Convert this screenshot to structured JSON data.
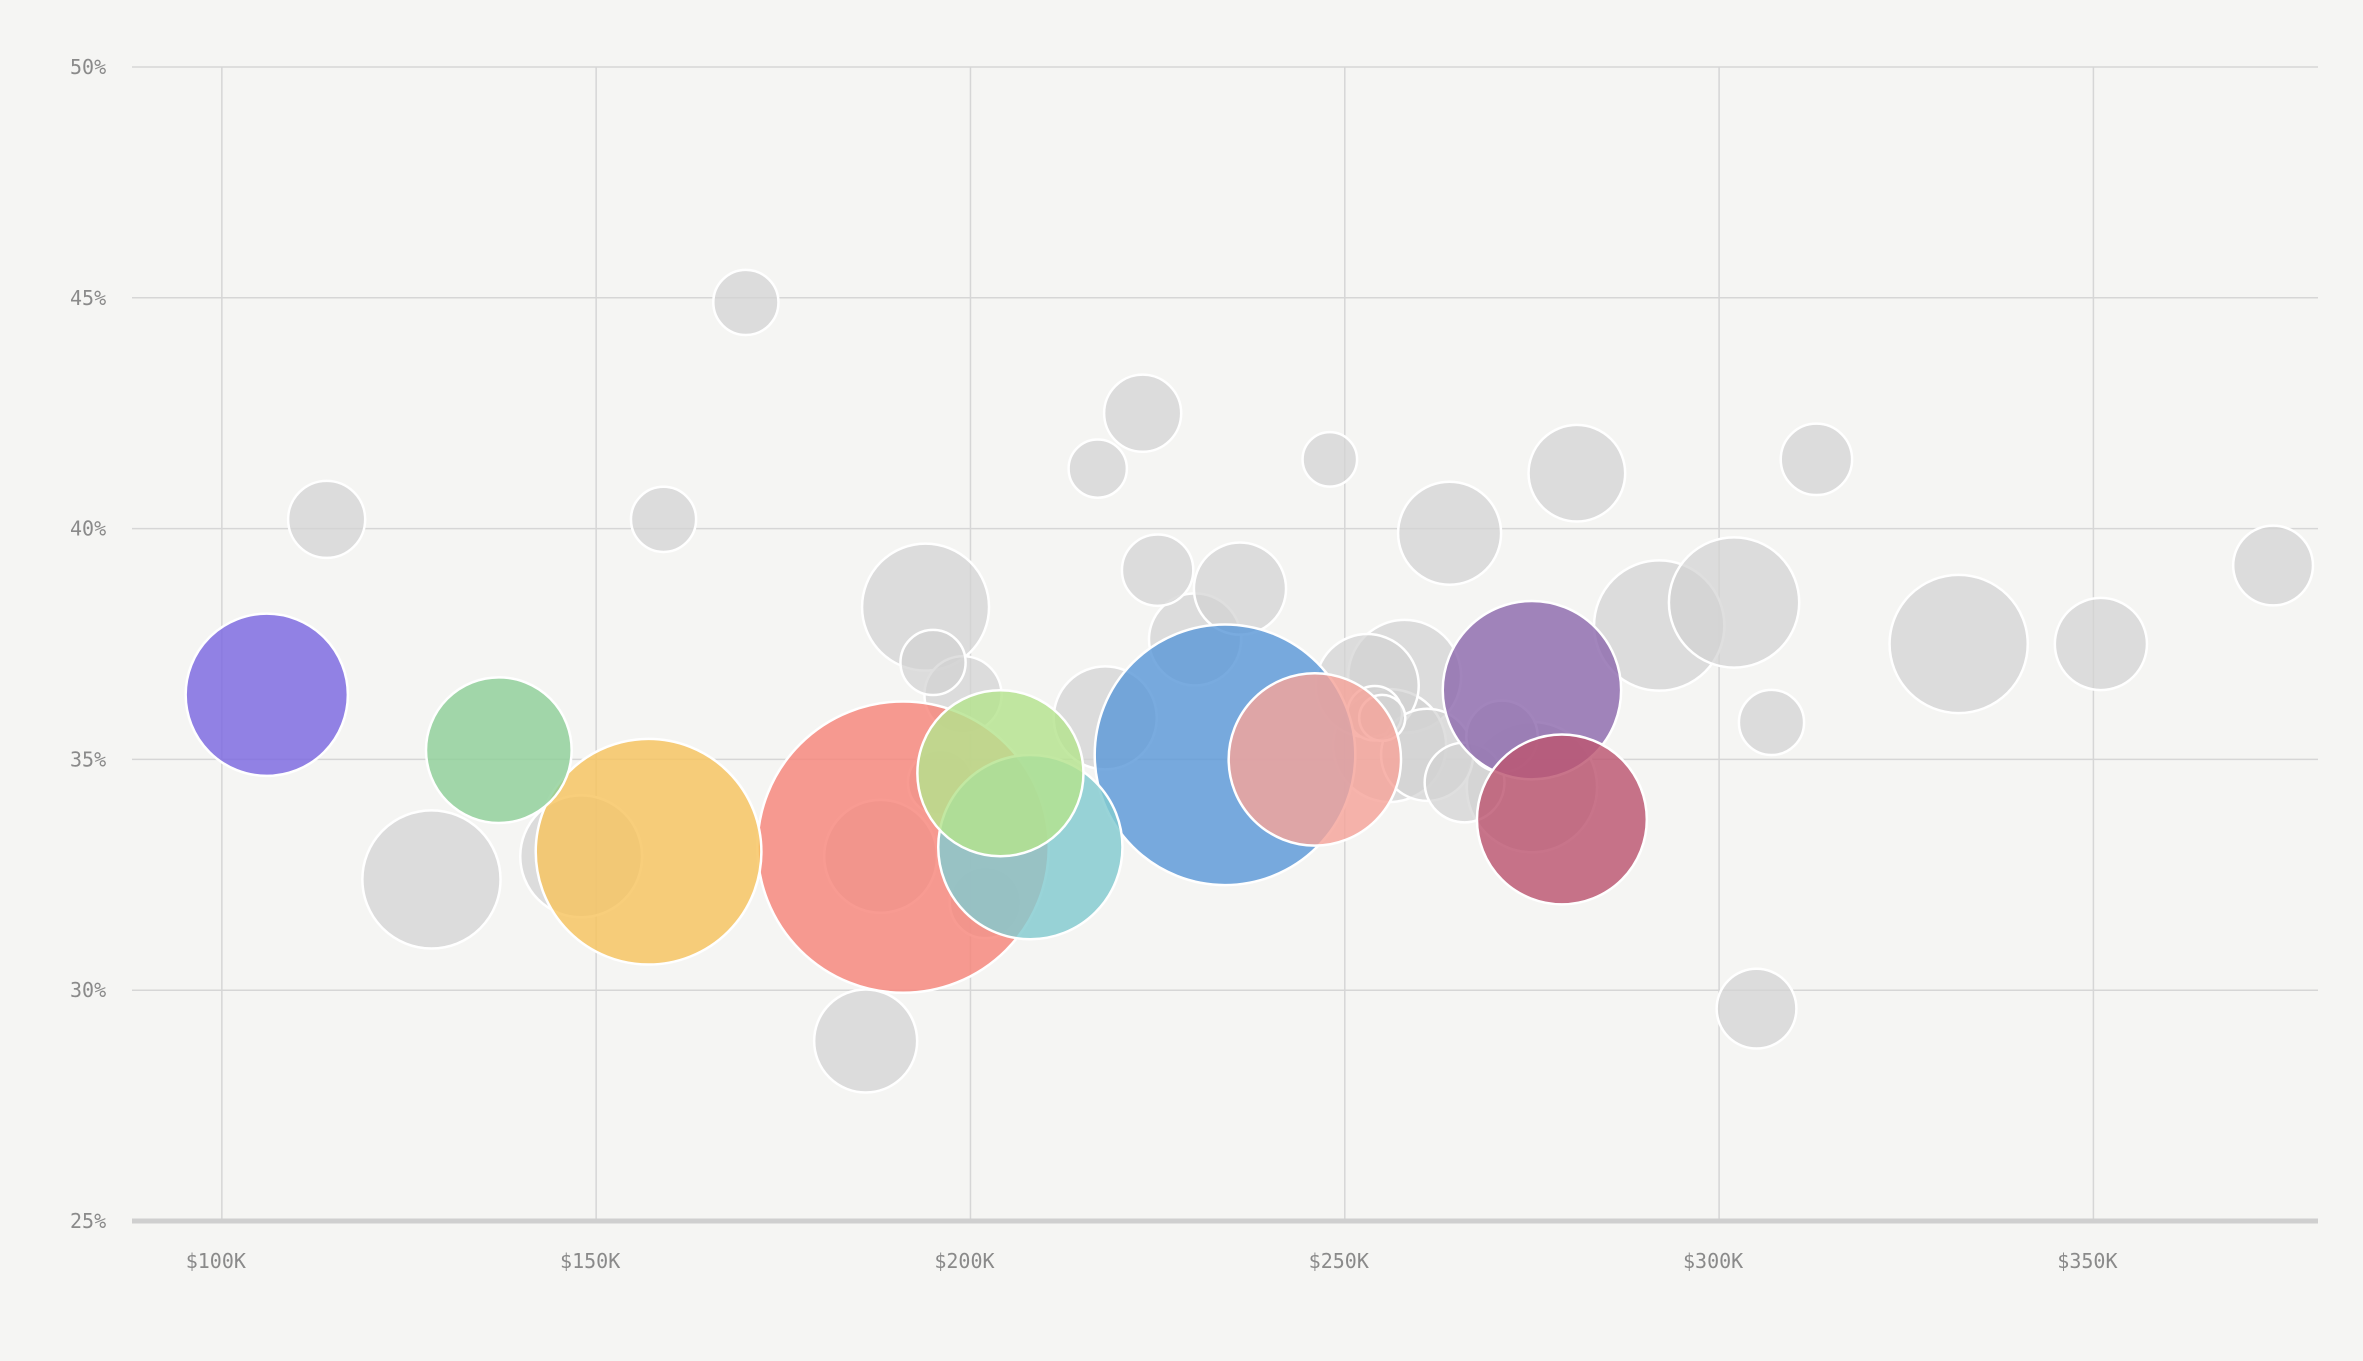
{
  "chart_data": {
    "type": "scatter",
    "xlim": [
      88000,
      380000
    ],
    "ylim": [
      25,
      50
    ],
    "x_ticks": [
      100000,
      150000,
      200000,
      250000,
      300000,
      350000
    ],
    "x_tick_labels": [
      "$100K",
      "$150K",
      "$200K",
      "$250K",
      "$300K",
      "$350K"
    ],
    "y_ticks": [
      25,
      30,
      35,
      40,
      45,
      50
    ],
    "y_tick_labels": [
      "25%",
      "30%",
      "35%",
      "40%",
      "45%",
      "50%"
    ],
    "grid": true,
    "legend": "none",
    "highlight_colors": {
      "purple": "#7b68e0",
      "green": "#8fcf98",
      "yellow": "#f6c35e",
      "red": "#f7857a",
      "teal": "#82cbcf",
      "lime": "#b5e38d",
      "blue": "#5b98d8",
      "pink": "#f5a39a",
      "violet": "#8e6aad",
      "crimson": "#bc5670",
      "grey": "#d3d3d3"
    },
    "points": [
      {
        "x": 114000,
        "y": 40.2,
        "size": 14,
        "color": "grey"
      },
      {
        "x": 159000,
        "y": 40.2,
        "size": 10,
        "color": "grey"
      },
      {
        "x": 170000,
        "y": 44.9,
        "size": 10,
        "color": "grey"
      },
      {
        "x": 128000,
        "y": 32.4,
        "size": 45,
        "color": "grey"
      },
      {
        "x": 148000,
        "y": 32.9,
        "size": 35,
        "color": "grey"
      },
      {
        "x": 186000,
        "y": 28.9,
        "size": 25,
        "color": "grey"
      },
      {
        "x": 194000,
        "y": 38.3,
        "size": 38,
        "color": "grey"
      },
      {
        "x": 195000,
        "y": 37.1,
        "size": 10,
        "color": "grey"
      },
      {
        "x": 199000,
        "y": 36.4,
        "size": 14,
        "color": "grey"
      },
      {
        "x": 188000,
        "y": 32.9,
        "size": 30,
        "color": "grey"
      },
      {
        "x": 196000,
        "y": 34.5,
        "size": 10,
        "color": "grey"
      },
      {
        "x": 202000,
        "y": 31.9,
        "size": 12,
        "color": "grey"
      },
      {
        "x": 217000,
        "y": 41.3,
        "size": 8,
        "color": "grey"
      },
      {
        "x": 223000,
        "y": 42.5,
        "size": 14,
        "color": "grey"
      },
      {
        "x": 225000,
        "y": 39.1,
        "size": 12,
        "color": "grey"
      },
      {
        "x": 230000,
        "y": 37.6,
        "size": 20,
        "color": "grey"
      },
      {
        "x": 236000,
        "y": 38.7,
        "size": 20,
        "color": "grey"
      },
      {
        "x": 218000,
        "y": 35.9,
        "size": 25,
        "color": "grey"
      },
      {
        "x": 248000,
        "y": 41.5,
        "size": 7,
        "color": "grey"
      },
      {
        "x": 253000,
        "y": 36.6,
        "size": 25,
        "color": "grey"
      },
      {
        "x": 258000,
        "y": 36.8,
        "size": 30,
        "color": "grey"
      },
      {
        "x": 256000,
        "y": 35.3,
        "size": 30,
        "color": "grey"
      },
      {
        "x": 261000,
        "y": 35.1,
        "size": 20,
        "color": "grey"
      },
      {
        "x": 254000,
        "y": 36.0,
        "size": 7,
        "color": "grey"
      },
      {
        "x": 255000,
        "y": 35.9,
        "size": 5,
        "color": "grey"
      },
      {
        "x": 264000,
        "y": 39.9,
        "size": 25,
        "color": "grey"
      },
      {
        "x": 266000,
        "y": 34.5,
        "size": 15,
        "color": "grey"
      },
      {
        "x": 271000,
        "y": 35.5,
        "size": 12,
        "color": "grey"
      },
      {
        "x": 275000,
        "y": 34.4,
        "size": 40,
        "color": "grey"
      },
      {
        "x": 281000,
        "y": 41.2,
        "size": 22,
        "color": "grey"
      },
      {
        "x": 292000,
        "y": 37.9,
        "size": 40,
        "color": "grey"
      },
      {
        "x": 302000,
        "y": 38.4,
        "size": 40,
        "color": "grey"
      },
      {
        "x": 307000,
        "y": 35.8,
        "size": 10,
        "color": "grey"
      },
      {
        "x": 313000,
        "y": 41.5,
        "size": 12,
        "color": "grey"
      },
      {
        "x": 305000,
        "y": 29.6,
        "size": 15,
        "color": "grey"
      },
      {
        "x": 332000,
        "y": 37.5,
        "size": 45,
        "color": "grey"
      },
      {
        "x": 351000,
        "y": 37.5,
        "size": 20,
        "color": "grey"
      },
      {
        "x": 374000,
        "y": 39.2,
        "size": 15,
        "color": "grey"
      },
      {
        "x": 106000,
        "y": 36.4,
        "size": 62,
        "color": "purple"
      },
      {
        "x": 137000,
        "y": 35.2,
        "size": 50,
        "color": "green"
      },
      {
        "x": 157000,
        "y": 33.0,
        "size": 120,
        "color": "yellow"
      },
      {
        "x": 191000,
        "y": 33.1,
        "size": 200,
        "color": "red"
      },
      {
        "x": 208000,
        "y": 33.1,
        "size": 80,
        "color": "teal"
      },
      {
        "x": 204000,
        "y": 34.7,
        "size": 65,
        "color": "lime"
      },
      {
        "x": 234000,
        "y": 35.1,
        "size": 160,
        "color": "blue"
      },
      {
        "x": 246000,
        "y": 35.0,
        "size": 70,
        "color": "pink"
      },
      {
        "x": 275000,
        "y": 36.5,
        "size": 75,
        "color": "violet"
      },
      {
        "x": 279000,
        "y": 33.7,
        "size": 68,
        "color": "crimson"
      }
    ]
  }
}
